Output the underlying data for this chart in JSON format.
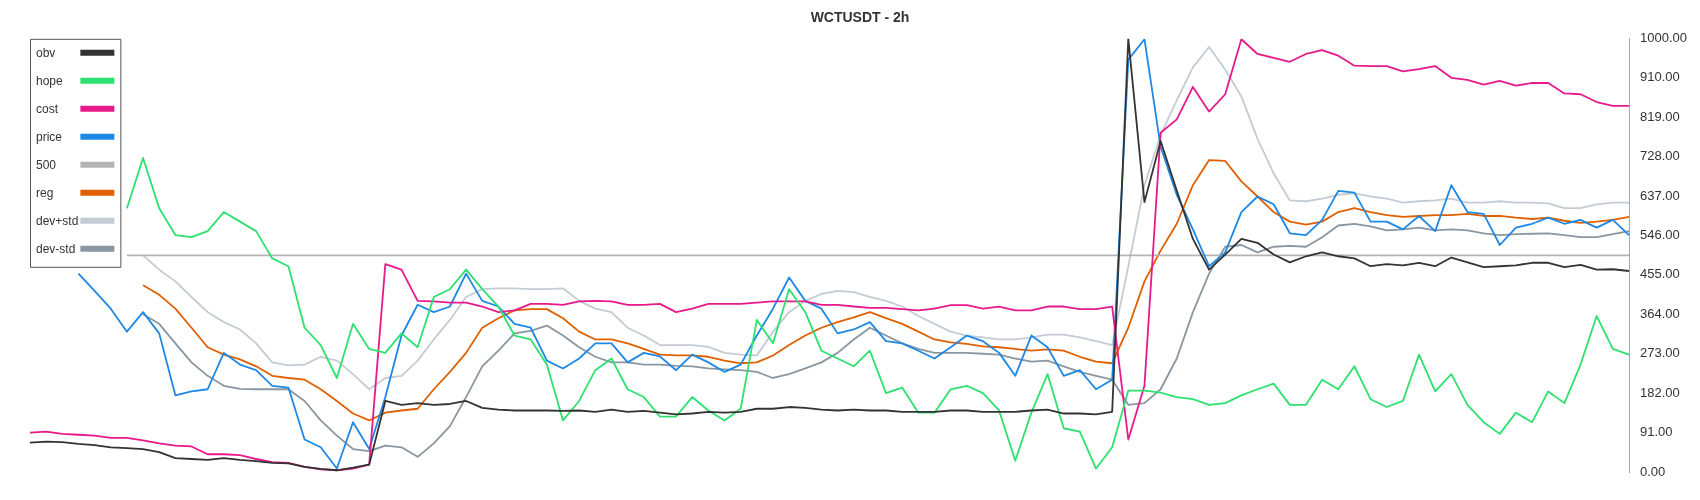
{
  "chart_data": {
    "type": "line",
    "title": "WCTUSDT - 2h",
    "categories": [
      null,
      null,
      null,
      null,
      null,
      null,
      null,
      null,
      null,
      null,
      null,
      null,
      null,
      null,
      null,
      null,
      null,
      null,
      null,
      null,
      null,
      null,
      null,
      null,
      null,
      null,
      null,
      null,
      null,
      null,
      null,
      null,
      null,
      null,
      null,
      null,
      null,
      null,
      null,
      null,
      null,
      null,
      null,
      null,
      null,
      null,
      null,
      null,
      null,
      null,
      null,
      null,
      null,
      null,
      null,
      null,
      null,
      null,
      null,
      null,
      null,
      null,
      null,
      null,
      null,
      null,
      null,
      null,
      null,
      null,
      null,
      null,
      null,
      null,
      null,
      null,
      null,
      null,
      null,
      null,
      null,
      null,
      null,
      null,
      null,
      null,
      null,
      null,
      null,
      null,
      null,
      null,
      null,
      null,
      null,
      null,
      null,
      null,
      null,
      null
    ],
    "series": [
      {
        "name": "obv",
        "color": "#333333",
        "values": [
          68,
          70,
          69,
          65,
          62,
          57,
          55,
          53,
          46,
          32,
          30,
          28,
          32,
          28,
          25,
          21,
          20,
          12,
          7,
          4,
          10,
          17,
          164,
          155,
          159,
          155,
          157,
          164,
          148,
          144,
          142,
          142,
          142,
          141,
          142,
          139,
          144,
          139,
          141,
          137,
          133,
          135,
          139,
          137,
          139,
          146,
          146,
          150,
          148,
          144,
          142,
          144,
          142,
          142,
          139,
          139,
          139,
          142,
          142,
          139,
          139,
          139,
          142,
          144,
          135,
          135,
          133,
          139,
          1000,
          623,
          764,
          650,
          538,
          467,
          502,
          538,
          529,
          502,
          484,
          498,
          507,
          498,
          493,
          475,
          480,
          477,
          483,
          475,
          495,
          484,
          473,
          475,
          477,
          483,
          483,
          473,
          478,
          467,
          468,
          464
        ]
      },
      {
        "name": "hope",
        "color": "#2ee070",
        "values": [
          null,
          null,
          null,
          null,
          null,
          null,
          609,
          725,
          609,
          547,
          542,
          556,
          600,
          578,
          556,
          493,
          475,
          333,
          293,
          217,
          342,
          284,
          275,
          320,
          288,
          404,
          422,
          467,
          422,
          382,
          315,
          306,
          248,
          119,
          164,
          235,
          262,
          191,
          173,
          128,
          128,
          173,
          142,
          119,
          146,
          351,
          297,
          422,
          369,
          280,
          262,
          244,
          280,
          182,
          195,
          137,
          137,
          191,
          199,
          182,
          142,
          26,
          137,
          226,
          101,
          93,
          8,
          57,
          188,
          188,
          183,
          173,
          168,
          155,
          159,
          177,
          191,
          204,
          155,
          155,
          213,
          191,
          244,
          168,
          150,
          164,
          271,
          186,
          226,
          155,
          115,
          88,
          137,
          115,
          186,
          159,
          248,
          360,
          284,
          271
        ]
      },
      {
        "name": "cost",
        "color": "#e8198b",
        "values": [
          91,
          93,
          88,
          86,
          84,
          79,
          79,
          73,
          66,
          61,
          59,
          41,
          41,
          39,
          30,
          23,
          21,
          12,
          6,
          4,
          8,
          17,
          480,
          467,
          395,
          394,
          391,
          391,
          382,
          369,
          373,
          388,
          388,
          386,
          394,
          395,
          394,
          386,
          386,
          388,
          369,
          377,
          388,
          388,
          388,
          391,
          394,
          394,
          394,
          386,
          386,
          382,
          379,
          379,
          376,
          373,
          377,
          385,
          385,
          377,
          382,
          373,
          373,
          382,
          382,
          376,
          376,
          382,
          75,
          199,
          783,
          814,
          889,
          832,
          872,
          999,
          965,
          956,
          947,
          965,
          974,
          961,
          938,
          937,
          937,
          925,
          930,
          937,
          910,
          905,
          894,
          903,
          892,
          898,
          898,
          874,
          872,
          854,
          845,
          845
        ]
      },
      {
        "name": "price",
        "color": "#1e88e5",
        "values": [
          null,
          null,
          null,
          458,
          418,
          377,
          324,
          369,
          320,
          177,
          186,
          191,
          275,
          248,
          235,
          199,
          195,
          75,
          57,
          8,
          115,
          53,
          173,
          315,
          386,
          369,
          382,
          458,
          395,
          382,
          342,
          333,
          257,
          239,
          262,
          297,
          297,
          253,
          275,
          267,
          235,
          271,
          253,
          231,
          248,
          315,
          377,
          449,
          395,
          377,
          320,
          329,
          346,
          302,
          297,
          280,
          262,
          288,
          315,
          302,
          275,
          222,
          315,
          288,
          222,
          235,
          191,
          213,
          952,
          999,
          751,
          640,
          560,
          475,
          507,
          600,
          636,
          618,
          551,
          547,
          582,
          649,
          645,
          578,
          578,
          560,
          591,
          556,
          662,
          600,
          596,
          524,
          564,
          573,
          587,
          573,
          582,
          564,
          582,
          547
        ]
      },
      {
        "name": "500",
        "color": "#b4b4b4",
        "values": [
          null,
          null,
          null,
          null,
          null,
          null,
          500,
          500,
          500,
          500,
          500,
          500,
          500,
          500,
          500,
          500,
          500,
          500,
          500,
          500,
          500,
          500,
          500,
          500,
          500,
          500,
          500,
          500,
          500,
          500,
          500,
          500,
          500,
          500,
          500,
          500,
          500,
          500,
          500,
          500,
          500,
          500,
          500,
          500,
          500,
          500,
          500,
          500,
          500,
          500,
          500,
          500,
          500,
          500,
          500,
          500,
          500,
          500,
          500,
          500,
          500,
          500,
          500,
          500,
          500,
          500,
          500,
          500,
          500,
          500,
          500,
          500,
          500,
          500,
          500,
          500,
          500,
          500,
          500,
          500,
          500,
          500,
          500,
          500,
          500,
          500,
          500,
          500,
          500,
          500,
          500,
          500,
          500,
          500,
          500,
          500,
          500,
          500,
          500,
          500
        ]
      },
      {
        "name": "reg",
        "color": "#e06000",
        "values": [
          null,
          null,
          null,
          null,
          null,
          null,
          null,
          431,
          409,
          377,
          333,
          288,
          271,
          260,
          244,
          222,
          217,
          213,
          191,
          164,
          135,
          119,
          137,
          142,
          146,
          191,
          231,
          275,
          333,
          355,
          373,
          376,
          376,
          355,
          324,
          306,
          306,
          297,
          284,
          271,
          269,
          269,
          266,
          257,
          251,
          253,
          269,
          293,
          315,
          333,
          346,
          357,
          369,
          355,
          342,
          324,
          306,
          299,
          296,
          290,
          288,
          284,
          280,
          283,
          280,
          266,
          255,
          251,
          333,
          440,
          511,
          573,
          662,
          720,
          718,
          671,
          636,
          600,
          578,
          571,
          578,
          600,
          609,
          600,
          593,
          589,
          591,
          593,
          593,
          596,
          591,
          591,
          587,
          584,
          587,
          580,
          575,
          578,
          582,
          589
        ]
      },
      {
        "name": "dev+std",
        "color": "#c3ccd4",
        "values": [
          null,
          null,
          null,
          null,
          null,
          null,
          null,
          500,
          467,
          440,
          404,
          369,
          346,
          329,
          297,
          253,
          246,
          248,
          266,
          257,
          226,
          191,
          217,
          222,
          257,
          306,
          351,
          404,
          422,
          424,
          424,
          422,
          422,
          424,
          395,
          377,
          369,
          333,
          315,
          293,
          293,
          293,
          289,
          275,
          271,
          269,
          324,
          369,
          395,
          411,
          418,
          415,
          404,
          395,
          382,
          360,
          342,
          324,
          315,
          311,
          306,
          306,
          311,
          317,
          317,
          311,
          302,
          293,
          475,
          662,
          778,
          858,
          934,
          981,
          929,
          867,
          769,
          689,
          627,
          625,
          631,
          640,
          643,
          636,
          631,
          622,
          625,
          627,
          631,
          622,
          622,
          625,
          622,
          622,
          620,
          609,
          609,
          618,
          622,
          622
        ]
      },
      {
        "name": "dev-std",
        "color": "#8a96a0",
        "values": [
          null,
          null,
          null,
          null,
          null,
          null,
          null,
          364,
          342,
          297,
          253,
          222,
          199,
          192,
          191,
          191,
          191,
          164,
          119,
          84,
          53,
          48,
          61,
          57,
          35,
          66,
          106,
          173,
          244,
          280,
          320,
          326,
          338,
          315,
          288,
          266,
          253,
          253,
          248,
          248,
          245,
          244,
          239,
          237,
          235,
          231,
          217,
          226,
          239,
          253,
          275,
          306,
          333,
          315,
          297,
          284,
          275,
          275,
          275,
          273,
          271,
          262,
          255,
          257,
          244,
          231,
          222,
          213,
          155,
          159,
          191,
          262,
          369,
          458,
          520,
          524,
          507,
          520,
          522,
          520,
          542,
          569,
          573,
          567,
          558,
          560,
          564,
          558,
          560,
          558,
          551,
          547,
          549,
          550,
          551,
          547,
          542,
          542,
          549,
          556
        ]
      }
    ],
    "ylim": [
      0,
      1000
    ],
    "yticks": [
      {
        "value": 0,
        "label": "0.00"
      },
      {
        "value": 91,
        "label": "91.00"
      },
      {
        "value": 182,
        "label": "182.00"
      },
      {
        "value": 273,
        "label": "273.00"
      },
      {
        "value": 364,
        "label": "364.00"
      },
      {
        "value": 455,
        "label": "455.00"
      },
      {
        "value": 546,
        "label": "546.00"
      },
      {
        "value": 637,
        "label": "637.00"
      },
      {
        "value": 728,
        "label": "728.00"
      },
      {
        "value": 819,
        "label": "819.00"
      },
      {
        "value": 910,
        "label": "910.00"
      },
      {
        "value": 1000,
        "label": "1000.00"
      }
    ],
    "tick_labels": "y",
    "grid": false,
    "legend": "top left",
    "marker": "none",
    "line_style": "solid"
  }
}
